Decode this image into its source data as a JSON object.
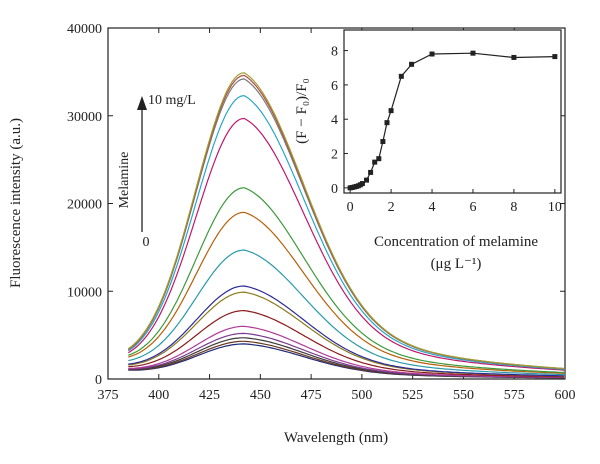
{
  "chart_data": [
    {
      "type": "line",
      "xlabel": "Wavelength (nm)",
      "ylabel": "Fluorescence intensity (a.u.)",
      "xlim": [
        375,
        600
      ],
      "ylim": [
        0,
        40000
      ],
      "x_ticks": [
        "375",
        "400",
        "425",
        "450",
        "475",
        "500",
        "525",
        "550",
        "575",
        "600"
      ],
      "y_ticks": [
        "0",
        "10000",
        "20000",
        "30000",
        "40000"
      ],
      "grid": false,
      "annotations": {
        "arrow_top": "10 mg/L",
        "arrow_side": "Melamine",
        "arrow_bottom": "0"
      },
      "peak_wavelength": 442,
      "start_wavelength": 385,
      "series": [
        {
          "values_peak": 4000,
          "start": 1000,
          "color": "#1f2a7a"
        },
        {
          "values_peak": 4300,
          "start": 1050,
          "color": "#6b3a1e"
        },
        {
          "values_peak": 4700,
          "start": 1100,
          "color": "#3b3b3b"
        },
        {
          "values_peak": 5200,
          "start": 1150,
          "color": "#7a3b8f"
        },
        {
          "values_peak": 6000,
          "start": 1200,
          "color": "#b03a9a"
        },
        {
          "values_peak": 7800,
          "start": 1400,
          "color": "#8b1a1a"
        },
        {
          "values_peak": 9900,
          "start": 1600,
          "color": "#8a7a1a"
        },
        {
          "values_peak": 10600,
          "start": 1700,
          "color": "#2a2a9a"
        },
        {
          "values_peak": 14700,
          "start": 2100,
          "color": "#2a9aa8"
        },
        {
          "values_peak": 19000,
          "start": 2500,
          "color": "#b8600a"
        },
        {
          "values_peak": 21800,
          "start": 2700,
          "color": "#3a9a3a"
        },
        {
          "values_peak": 29700,
          "start": 3000,
          "color": "#c0186a"
        },
        {
          "values_peak": 32300,
          "start": 3200,
          "color": "#2aa6c8"
        },
        {
          "values_peak": 34200,
          "start": 3300,
          "color": "#7a7a7a"
        },
        {
          "values_peak": 34600,
          "start": 3400,
          "color": "#b04a4a"
        },
        {
          "values_peak": 34900,
          "start": 3450,
          "color": "#a0a030"
        }
      ]
    },
    {
      "type": "line",
      "xlabel_line1": "Concentration of melamine",
      "xlabel_line2": "(μg L⁻¹)",
      "ylabel": "(F − F₀)/F₀",
      "xlim": [
        -0.3,
        10.3
      ],
      "ylim": [
        -0.3,
        9.2
      ],
      "x_ticks": [
        "0",
        "2",
        "4",
        "6",
        "8",
        "10"
      ],
      "y_ticks": [
        "0",
        "2",
        "4",
        "6",
        "8"
      ],
      "marker": "square",
      "x": [
        0,
        0.1,
        0.2,
        0.3,
        0.4,
        0.5,
        0.6,
        0.8,
        1.0,
        1.2,
        1.4,
        1.6,
        1.8,
        2.0,
        2.5,
        3.0,
        4.0,
        6.0,
        8.0,
        10.0
      ],
      "values": [
        0,
        0.02,
        0.05,
        0.08,
        0.12,
        0.18,
        0.25,
        0.45,
        0.9,
        1.5,
        1.7,
        2.7,
        3.8,
        4.5,
        6.5,
        7.2,
        7.8,
        7.85,
        7.6,
        7.65
      ]
    }
  ]
}
